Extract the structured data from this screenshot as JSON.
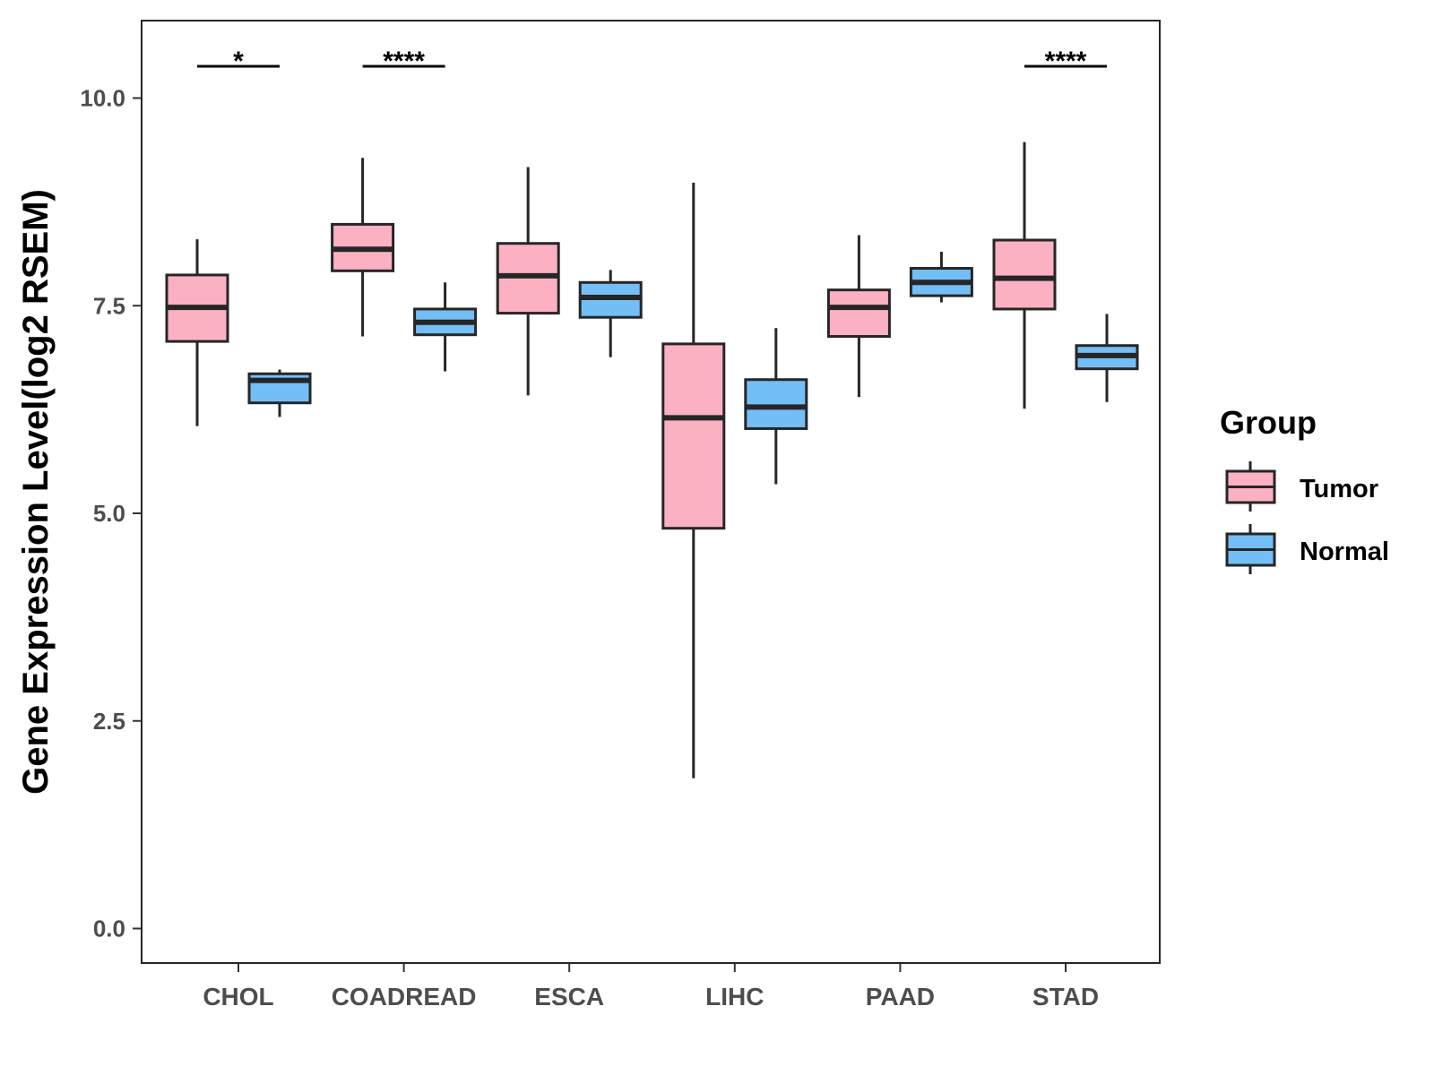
{
  "colors": {
    "tumor": "#fcb1c3",
    "normal": "#74bef6",
    "stroke": "#262626"
  },
  "chart_data": {
    "type": "box",
    "ylabel": "Gene Expression Level(log2 RSEM)",
    "xlabel": "",
    "ylim": [
      -0.5,
      10.85
    ],
    "yticks": [
      0.0,
      2.5,
      5.0,
      7.5,
      10.0
    ],
    "ytick_labels": [
      "0.0",
      "2.5",
      "5.0",
      "7.5",
      "10.0"
    ],
    "categories": [
      "CHOL",
      "COADREAD",
      "ESCA",
      "LIHC",
      "PAAD",
      "STAD"
    ],
    "legend": {
      "title": "Group",
      "entries": [
        "Tumor",
        "Normal"
      ],
      "placement": "right"
    },
    "series": [
      {
        "name": "Tumor",
        "boxes": [
          {
            "min": 6.05,
            "q1": 7.07,
            "median": 7.48,
            "q3": 7.87,
            "max": 8.3
          },
          {
            "min": 7.13,
            "q1": 7.92,
            "median": 8.18,
            "q3": 8.48,
            "max": 9.28
          },
          {
            "min": 6.42,
            "q1": 7.41,
            "median": 7.86,
            "q3": 8.25,
            "max": 9.17
          },
          {
            "min": 1.81,
            "q1": 4.82,
            "median": 6.15,
            "q3": 7.04,
            "max": 8.98
          },
          {
            "min": 6.4,
            "q1": 7.13,
            "median": 7.48,
            "q3": 7.69,
            "max": 8.35
          },
          {
            "min": 6.26,
            "q1": 7.46,
            "median": 7.83,
            "q3": 8.29,
            "max": 9.47
          }
        ]
      },
      {
        "name": "Normal",
        "boxes": [
          {
            "min": 6.16,
            "q1": 6.33,
            "median": 6.6,
            "q3": 6.68,
            "max": 6.73
          },
          {
            "min": 6.71,
            "q1": 7.15,
            "median": 7.3,
            "q3": 7.46,
            "max": 7.78
          },
          {
            "min": 6.88,
            "q1": 7.36,
            "median": 7.6,
            "q3": 7.78,
            "max": 7.93
          },
          {
            "min": 5.35,
            "q1": 6.02,
            "median": 6.28,
            "q3": 6.61,
            "max": 7.23
          },
          {
            "min": 7.54,
            "q1": 7.62,
            "median": 7.78,
            "q3": 7.95,
            "max": 8.15
          },
          {
            "min": 6.34,
            "q1": 6.74,
            "median": 6.9,
            "q3": 7.02,
            "max": 7.4
          }
        ]
      }
    ],
    "annotations": [
      {
        "category": "CHOL",
        "text": "*"
      },
      {
        "category": "COADREAD",
        "text": "****"
      },
      {
        "category": "STAD",
        "text": "****"
      }
    ]
  }
}
